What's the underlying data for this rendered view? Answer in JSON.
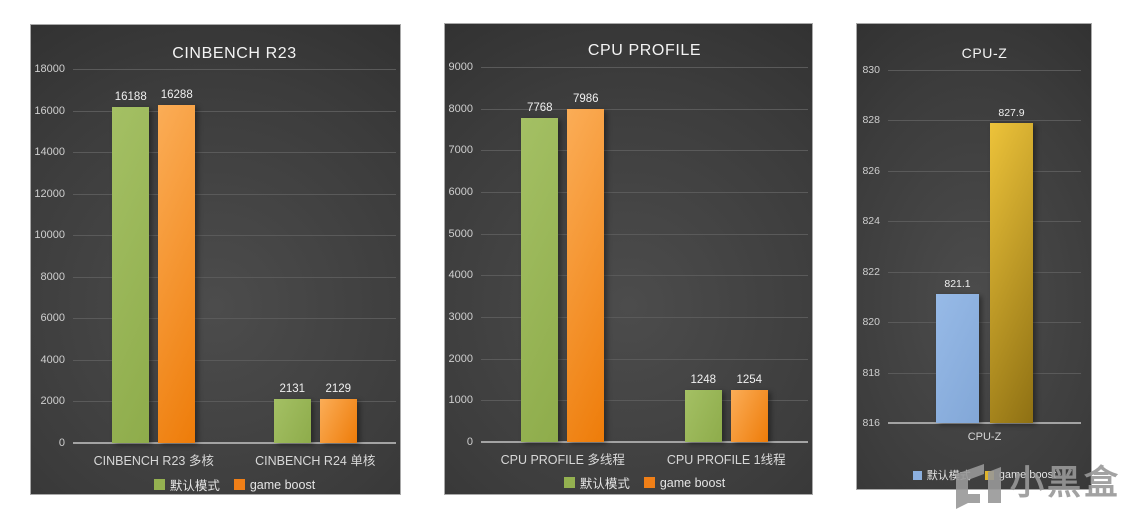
{
  "page": {
    "background": "#ffffff",
    "panel_background": "#3c3c3c",
    "watermark": {
      "text": "小黑盒",
      "logo": "heybox-box-logo",
      "color": "#989898"
    }
  },
  "chart_data": [
    {
      "type": "bar",
      "title": "CINBENCH R23",
      "categories": [
        "CINBENCH R23 多核",
        "CINBENCH R24 单核"
      ],
      "series": [
        {
          "name": "默认模式",
          "color": "#A4C064",
          "color2": "#8EAC4B",
          "swatch": "#94B150",
          "values": [
            16188,
            2131
          ]
        },
        {
          "name": "game boost",
          "color": "#FBAD57",
          "color2": "#EE7C09",
          "swatch": "#F07F17",
          "values": [
            16288,
            2129
          ]
        }
      ],
      "xlabel": "",
      "ylabel": "",
      "ylim": [
        0,
        18000
      ],
      "ytick_step": 2000,
      "grid": true,
      "legend_position": "bottom"
    },
    {
      "type": "bar",
      "title": "CPU PROFILE",
      "categories": [
        "CPU PROFILE 多线程",
        "CPU PROFILE 1线程"
      ],
      "series": [
        {
          "name": "默认模式",
          "color": "#A4C064",
          "color2": "#8EAC4B",
          "swatch": "#94B150",
          "values": [
            7768,
            1248
          ]
        },
        {
          "name": "game boost",
          "color": "#FBAD57",
          "color2": "#EE7C09",
          "swatch": "#F07F17",
          "values": [
            7986,
            1254
          ]
        }
      ],
      "xlabel": "",
      "ylabel": "",
      "ylim": [
        0,
        9000
      ],
      "ytick_step": 1000,
      "grid": true,
      "legend_position": "bottom"
    },
    {
      "type": "bar",
      "title": "CPU-Z",
      "categories": [
        "CPU-Z"
      ],
      "series": [
        {
          "name": "默认模式",
          "color": "#97BAE7",
          "color2": "#82A7D7",
          "swatch": "#8CB0DF",
          "values": [
            821.1
          ]
        },
        {
          "name": "game boost",
          "color": "#EDC33A",
          "color2": "#8E7013",
          "swatch": "#E0B42C",
          "values": [
            827.9
          ]
        }
      ],
      "xlabel": "",
      "ylabel": "",
      "ylim": [
        816,
        830
      ],
      "ytick_step": 2,
      "grid": true,
      "legend_position": "bottom"
    }
  ]
}
